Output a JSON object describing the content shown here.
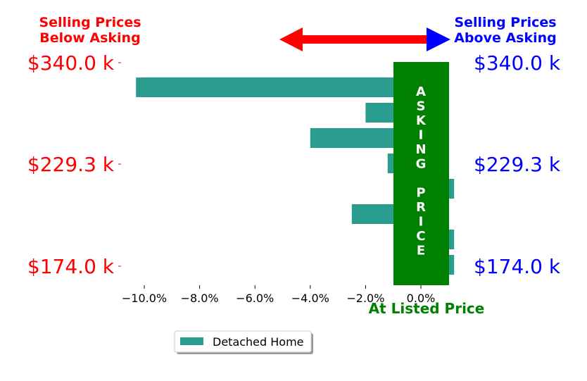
{
  "chart_data": {
    "type": "bar",
    "orientation": "horizontal",
    "xlim": [
      -11,
      1.3
    ],
    "ylim": [
      -0.5,
      7.5
    ],
    "x_ticks": [
      -10,
      -8,
      -6,
      -4,
      -2,
      0
    ],
    "x_tick_labels": [
      "−10.0%",
      "−8.0%",
      "−6.0%",
      "−4.0%",
      "−2.0%",
      "0.0%"
    ],
    "series": [
      {
        "name": "Detached Home",
        "color": "#2a9d8f",
        "values": [
          -10.3,
          -2.0,
          -4.0,
          -1.2,
          1.2,
          -2.5,
          1.2,
          1.2
        ]
      }
    ],
    "left_price_labels": [
      "$340.0 k",
      "$229.3 k",
      "$174.0 k"
    ],
    "right_price_labels": [
      "$340.0 k",
      "$229.3 k",
      "$174.0 k"
    ],
    "price_label_rows": [
      0,
      4,
      8
    ],
    "annotations": {
      "below_asking": [
        "Selling Prices",
        "Below Asking"
      ],
      "above_asking": [
        "Selling Prices",
        "Above Asking"
      ],
      "band_text_top": [
        "A",
        "S",
        "K",
        "I",
        "N",
        "G"
      ],
      "band_text_bottom": [
        "P",
        "R",
        "I",
        "C",
        "E"
      ],
      "at_listed_price": "At Listed Price"
    },
    "band": {
      "x_range": [
        -1,
        1
      ],
      "color": "#008000"
    },
    "arrow": {
      "left_color": "#ff0000",
      "right_color": "#0000ff"
    },
    "legend": {
      "placement": "bottom-center",
      "label": "Detached Home"
    },
    "grid": false
  }
}
